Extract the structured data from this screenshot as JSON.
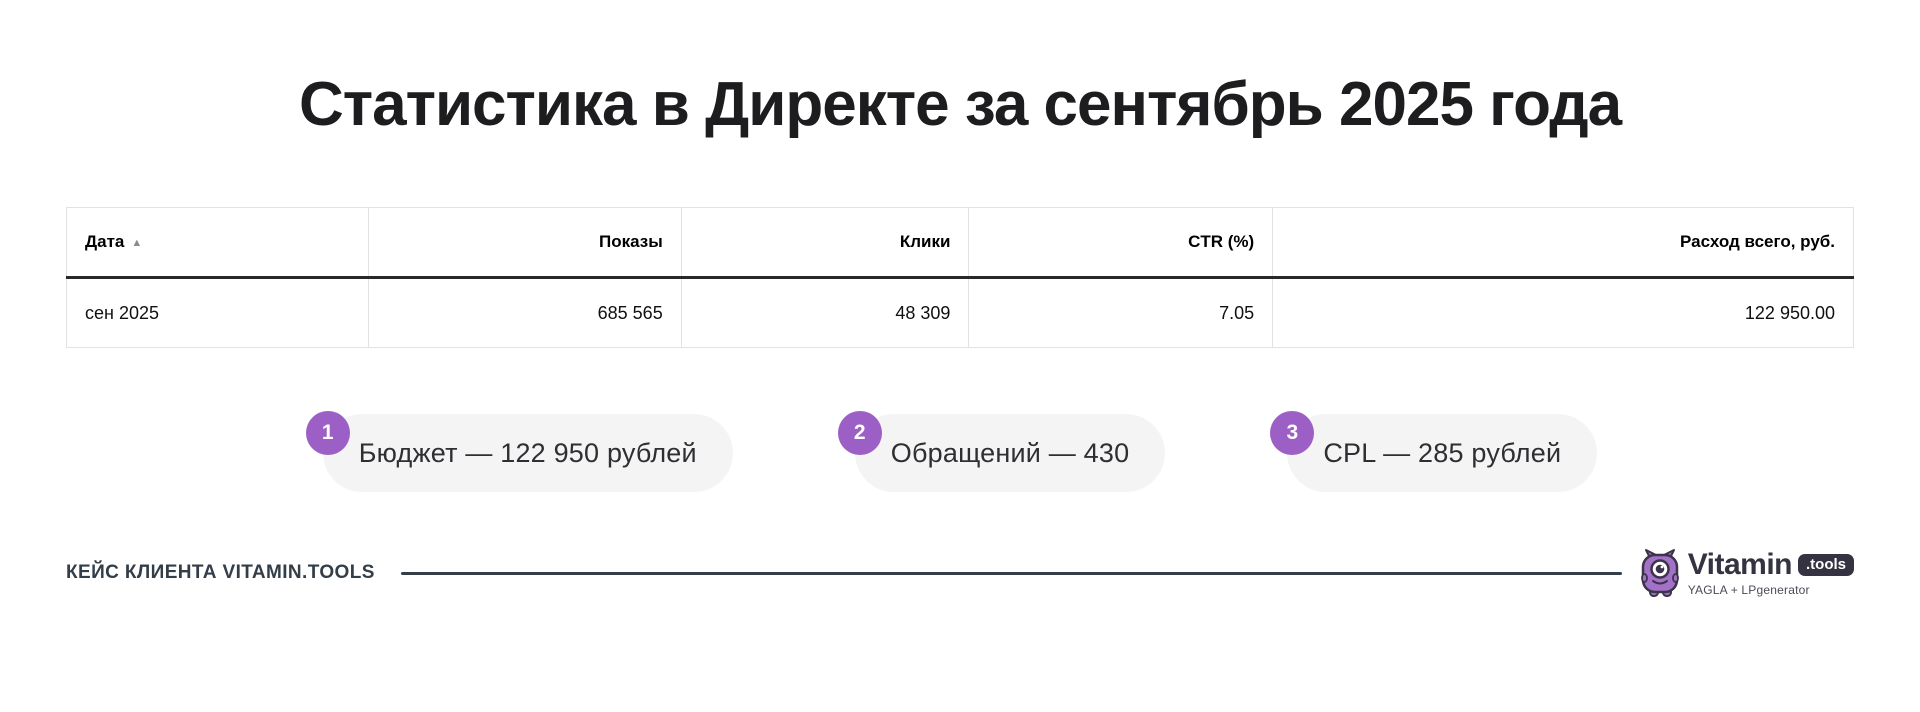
{
  "title": "Статистика в Директе за сентябрь 2025 года",
  "table": {
    "columns": [
      {
        "label": "Дата",
        "sort_icon": "▲",
        "align": "left"
      },
      {
        "label": "Показы",
        "align": "right"
      },
      {
        "label": "Клики",
        "align": "right"
      },
      {
        "label": "CTR (%)",
        "align": "right"
      },
      {
        "label": "Расход всего, руб.",
        "align": "right"
      }
    ],
    "rows": [
      [
        "сен 2025",
        "685 565",
        "48 309",
        "7.05",
        "122 950.00"
      ]
    ]
  },
  "metrics": [
    {
      "num": "1",
      "text": "Бюджет — 122 950 рублей"
    },
    {
      "num": "2",
      "text": "Обращений — 430"
    },
    {
      "num": "3",
      "text": "CPL — 285 рублей"
    }
  ],
  "footer": {
    "label": "КЕЙС КЛИЕНТА VITAMIN.TOOLS",
    "logo_word": "Vitamin",
    "logo_badge": ".tools",
    "logo_sub": "YAGLA + LPgenerator"
  },
  "colors": {
    "accent_purple": "#9c5fc5",
    "pill_bg": "#f4f4f5",
    "footer_dark": "#333e48",
    "table_border": "#e2e2e2",
    "header_rule": "#28282a",
    "title_color": "#1d1d1f"
  }
}
